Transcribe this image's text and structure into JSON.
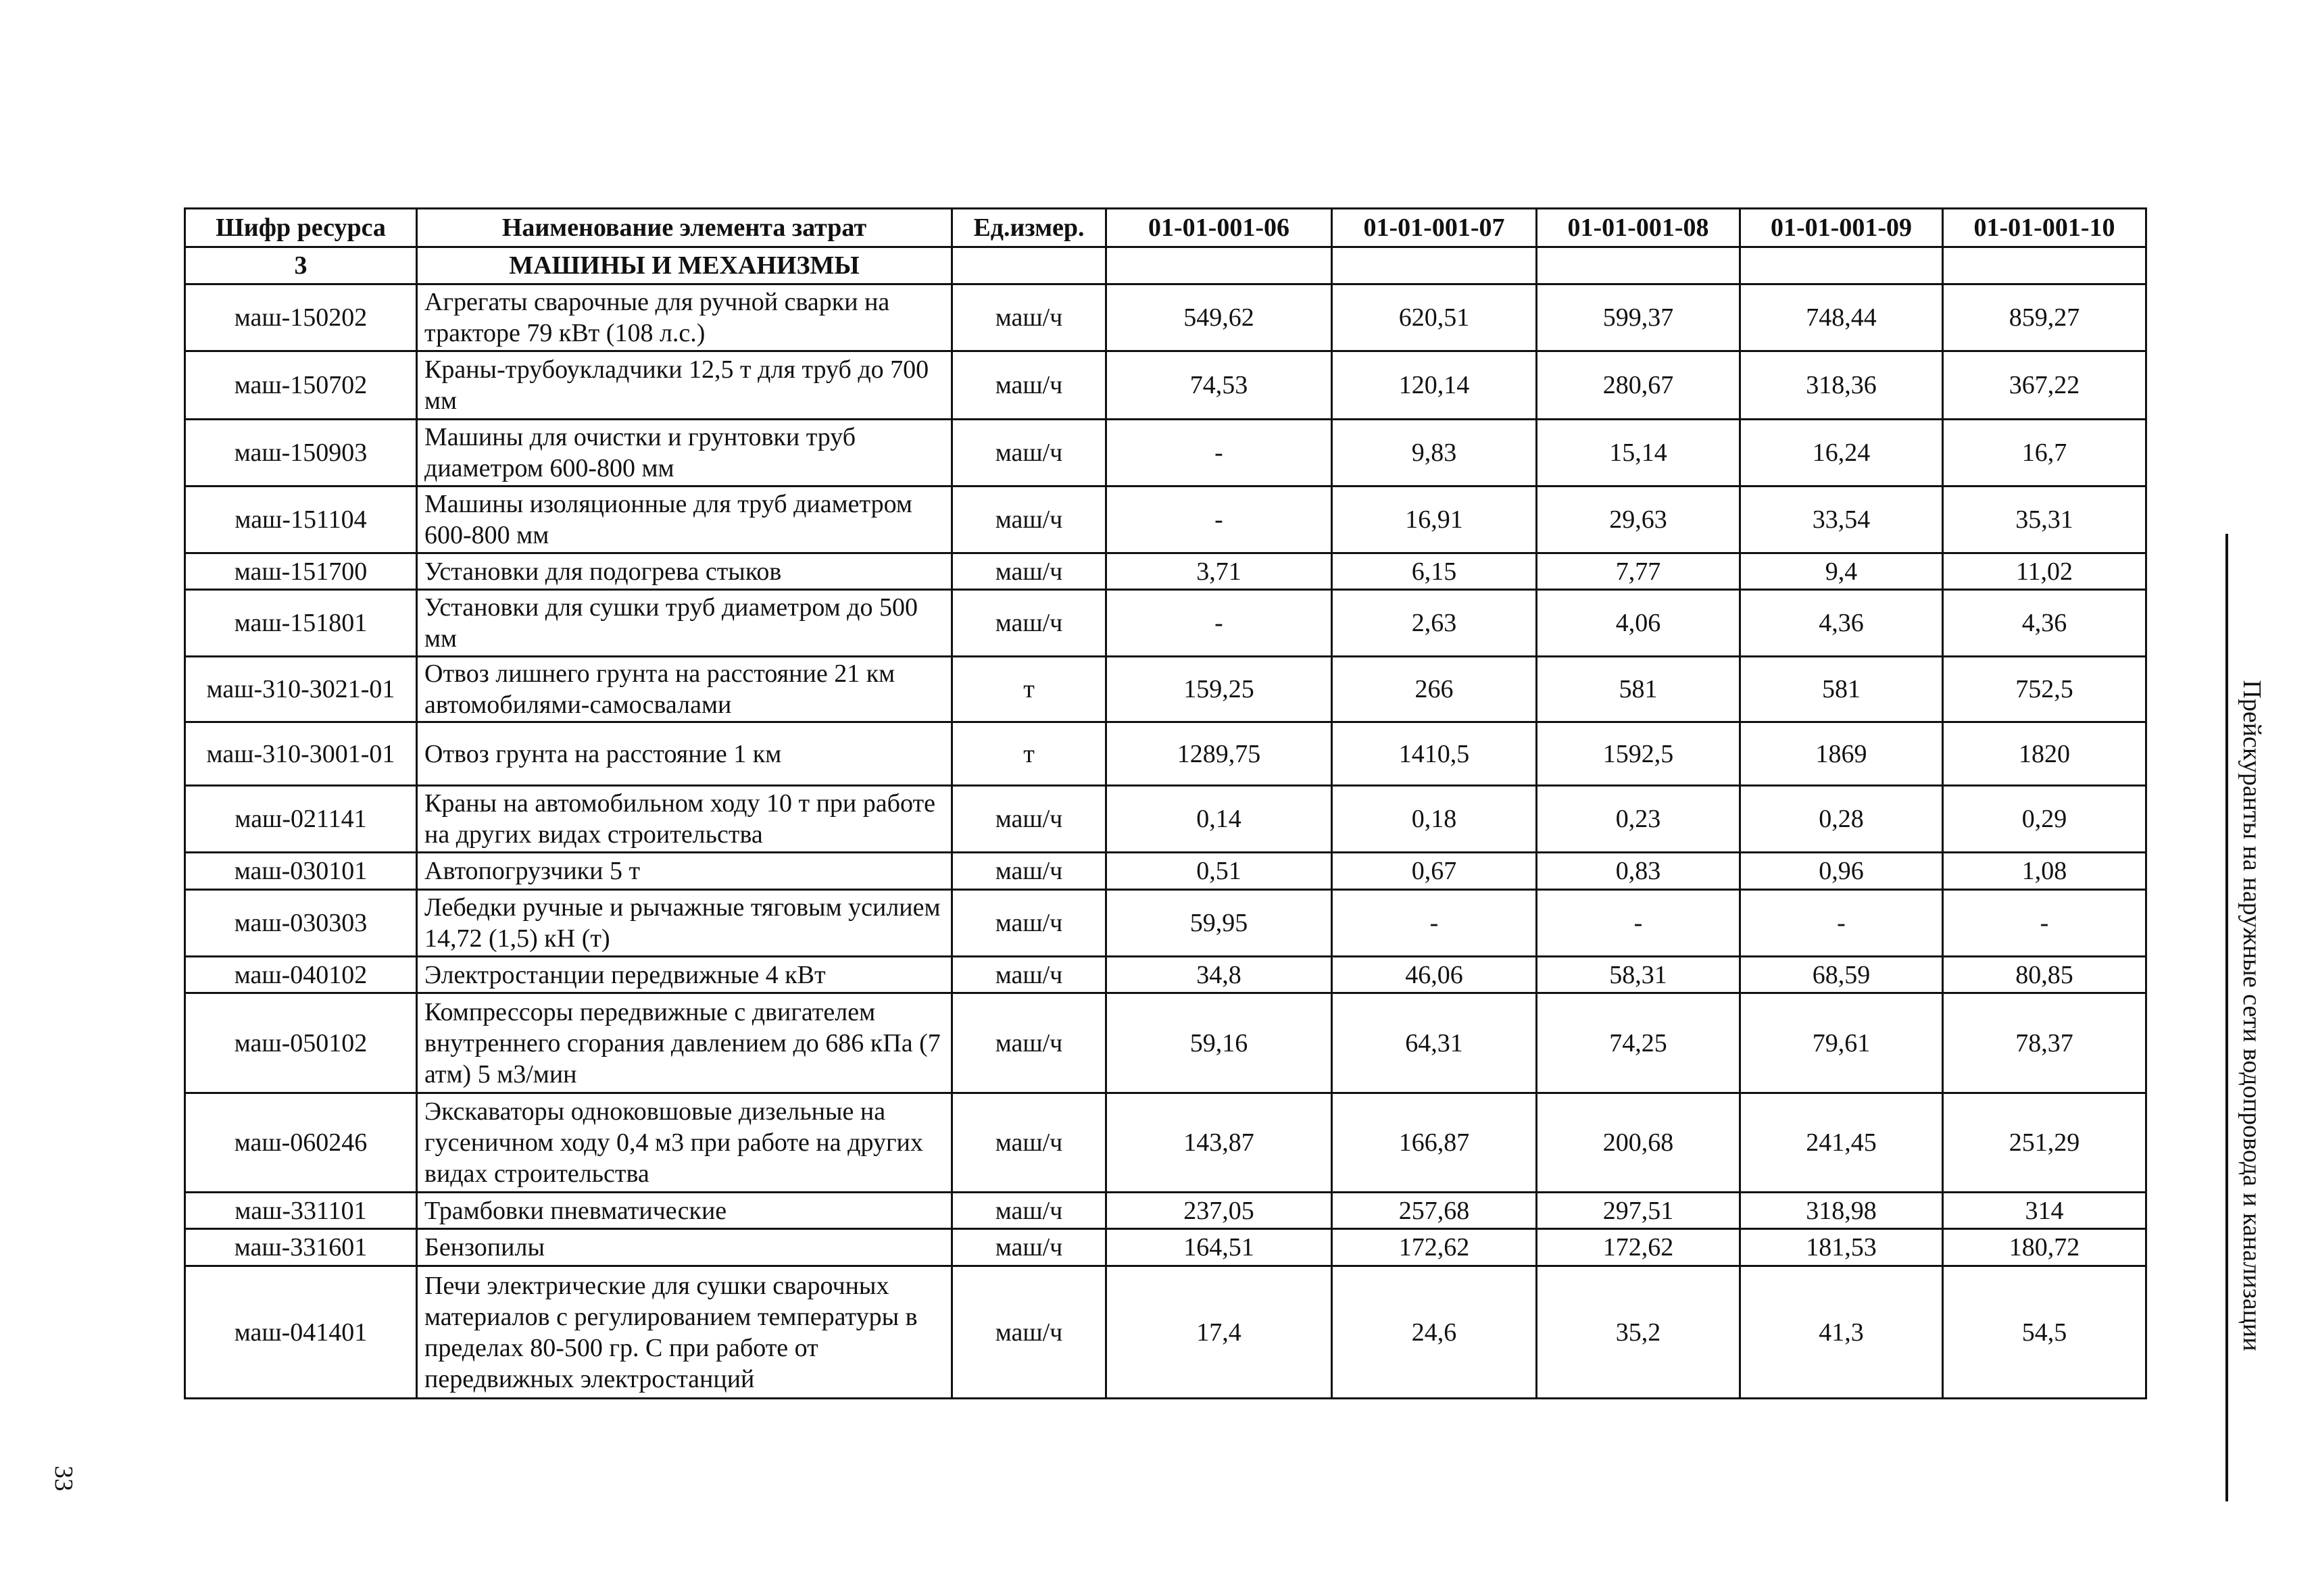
{
  "side_title": "Прейскуранты на наружные сети водопровода и канализации",
  "page_number": "33",
  "table": {
    "headers": [
      "Шифр ресурса",
      "Наименование элемента затрат",
      "Ед.измер.",
      "01-01-001-06",
      "01-01-001-07",
      "01-01-001-08",
      "01-01-001-09",
      "01-01-001-10"
    ],
    "section": {
      "code": "3",
      "name": "МАШИНЫ И МЕХАНИЗМЫ"
    },
    "rows": [
      {
        "code": "маш-150202",
        "name": "Агрегаты сварочные для ручной сварки на тракторе 79 кВт (108 л.с.)",
        "unit": "маш/ч",
        "values": [
          "549,62",
          "620,51",
          "599,37",
          "748,44",
          "859,27"
        ]
      },
      {
        "code": "маш-150702",
        "name": "Краны-трубоукладчики 12,5 т для труб до 700 мм",
        "unit": "маш/ч",
        "values": [
          "74,53",
          "120,14",
          "280,67",
          "318,36",
          "367,22"
        ]
      },
      {
        "code": "маш-150903",
        "name": "Машины для очистки и грунтовки труб диаметром 600-800 мм",
        "unit": "маш/ч",
        "values": [
          "-",
          "9,83",
          "15,14",
          "16,24",
          "16,7"
        ]
      },
      {
        "code": "маш-151104",
        "name": "Машины изоляционные для труб диаметром  600-800 мм",
        "unit": "маш/ч",
        "values": [
          "-",
          "16,91",
          "29,63",
          "33,54",
          "35,31"
        ]
      },
      {
        "code": "маш-151700",
        "name": "Установки для подогрева стыков",
        "unit": "маш/ч",
        "values": [
          "3,71",
          "6,15",
          "7,77",
          "9,4",
          "11,02"
        ]
      },
      {
        "code": "маш-151801",
        "name": "Установки для сушки труб диаметром до 500 мм",
        "unit": "маш/ч",
        "values": [
          "-",
          "2,63",
          "4,06",
          "4,36",
          "4,36"
        ]
      },
      {
        "code": "маш-310-3021-01",
        "name": "Отвоз лишнего грунта на расстояние 21 км автомобилями-самосвалами",
        "unit": "т",
        "values": [
          "159,25",
          "266",
          "581",
          "581",
          "752,5"
        ]
      },
      {
        "code": "маш-310-3001-01",
        "name": "Отвоз грунта на расстояние 1 км",
        "unit": "т",
        "values": [
          "1289,75",
          "1410,5",
          "1592,5",
          "1869",
          "1820"
        ]
      },
      {
        "code": "маш-021141",
        "name": "Краны на автомобильном ходу 10 т при работе на других видах строительства",
        "unit": "маш/ч",
        "values": [
          "0,14",
          "0,18",
          "0,23",
          "0,28",
          "0,29"
        ]
      },
      {
        "code": "маш-030101",
        "name": "Автопогрузчики 5 т",
        "unit": "маш/ч",
        "values": [
          "0,51",
          "0,67",
          "0,83",
          "0,96",
          "1,08"
        ]
      },
      {
        "code": "маш-030303",
        "name": "Лебедки ручные и рычажные тяговым усилием 14,72 (1,5) кН (т)",
        "unit": "маш/ч",
        "values": [
          "59,95",
          "-",
          "-",
          "-",
          "-"
        ]
      },
      {
        "code": "маш-040102",
        "name": "Электростанции передвижные  4 кВт",
        "unit": "маш/ч",
        "values": [
          "34,8",
          "46,06",
          "58,31",
          "68,59",
          "80,85"
        ]
      },
      {
        "code": "маш-050102",
        "name": "Компрессоры передвижные с двигателем внутреннего сгорания давлением до 686 кПа (7 атм) 5 м3/мин",
        "unit": "маш/ч",
        "values": [
          "59,16",
          "64,31",
          "74,25",
          "79,61",
          "78,37"
        ]
      },
      {
        "code": "маш-060246",
        "name": "Экскаваторы одноковшовые дизельные на гусеничном ходу 0,4 м3 при работе на других видах строительства",
        "unit": "маш/ч",
        "values": [
          "143,87",
          "166,87",
          "200,68",
          "241,45",
          "251,29"
        ]
      },
      {
        "code": "маш-331101",
        "name": "Трамбовки пневматические",
        "unit": "маш/ч",
        "values": [
          "237,05",
          "257,68",
          "297,51",
          "318,98",
          "314"
        ]
      },
      {
        "code": "маш-331601",
        "name": "Бензопилы",
        "unit": "маш/ч",
        "values": [
          "164,51",
          "172,62",
          "172,62",
          "181,53",
          "180,72"
        ]
      },
      {
        "code": "маш-041401",
        "name": "Печи электрические для сушки сварочных материалов с регулированием температуры в пределах 80-500 гр. С при работе от передвижных электростанций",
        "unit": "маш/ч",
        "values": [
          "17,4",
          "24,6",
          "35,2",
          "41,3",
          "54,5"
        ]
      }
    ]
  }
}
